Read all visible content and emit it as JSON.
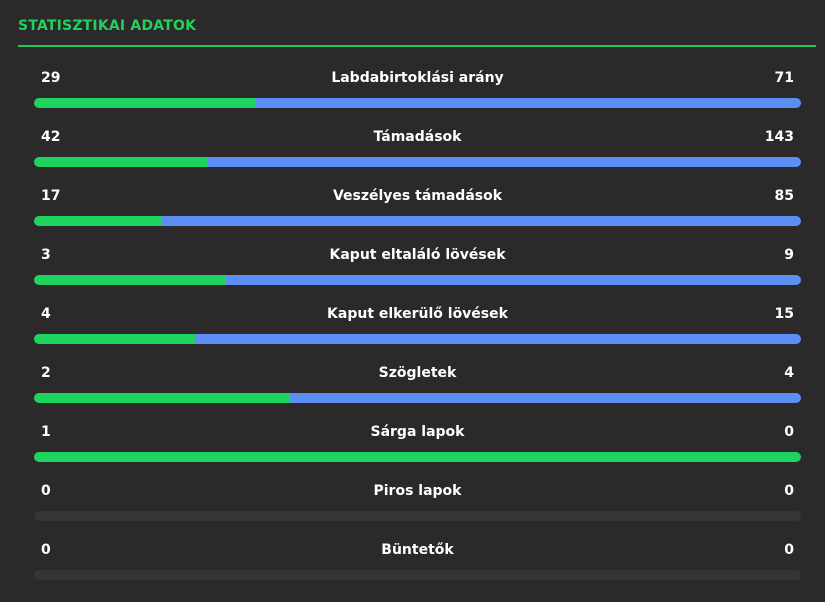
{
  "header": {
    "title": "STATISZTIKAI ADATOK"
  },
  "colors": {
    "home": "#1ed45e",
    "away": "#5b8ff5",
    "empty": "#363434",
    "accent": "#22d15c"
  },
  "stats": [
    {
      "label": "Labdabirtoklási arány",
      "home": "29",
      "away": "71"
    },
    {
      "label": "Támadások",
      "home": "42",
      "away": "143"
    },
    {
      "label": "Veszélyes támadások",
      "home": "17",
      "away": "85"
    },
    {
      "label": "Kaput eltaláló lövések",
      "home": "3",
      "away": "9"
    },
    {
      "label": "Kaput elkerülő lövések",
      "home": "4",
      "away": "15"
    },
    {
      "label": "Szögletek",
      "home": "2",
      "away": "4"
    },
    {
      "label": "Sárga lapok",
      "home": "1",
      "away": "0"
    },
    {
      "label": "Piros lapok",
      "home": "0",
      "away": "0"
    },
    {
      "label": "Büntetők",
      "home": "0",
      "away": "0"
    }
  ]
}
